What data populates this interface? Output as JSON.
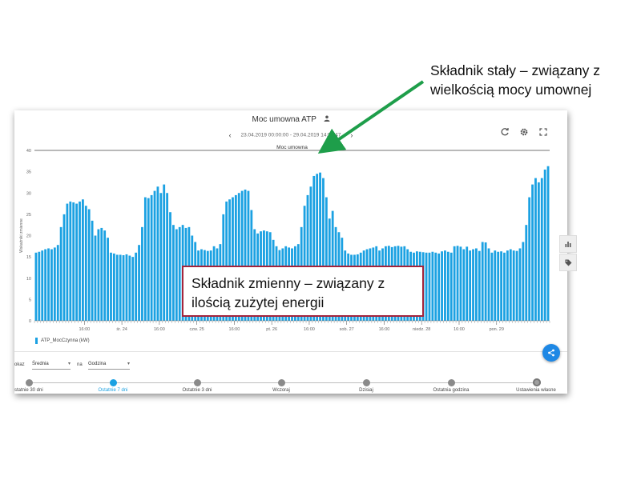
{
  "panel": {
    "title": "Moc umowna ATP",
    "date_range": "23.04.2019 00:00:00 - 29.04.2019 14:56:47",
    "icons": [
      "user-icon",
      "chevron-left-icon",
      "chevron-right-icon",
      "refresh-icon",
      "gear-icon",
      "fullscreen-icon",
      "bar-chart-icon",
      "tag-icon",
      "share-icon"
    ]
  },
  "chart_data": {
    "type": "bar",
    "title": "Moc umowna",
    "ylabel": "Wskaźniki zmienne",
    "ylim": [
      0,
      40
    ],
    "yticks": [
      0,
      5,
      10,
      15,
      20,
      25,
      30,
      35,
      40
    ],
    "xticks": [
      "16:00",
      "śr. 24",
      "16:00",
      "czw. 25",
      "16:00",
      "pt. 26",
      "16:00",
      "sob. 27",
      "16:00",
      "niedz. 28",
      "16:00",
      "pon. 29"
    ],
    "threshold": {
      "label": "Moc umowna",
      "value": 40
    },
    "color": "#1ba1e2",
    "series": [
      {
        "name": "ATP_MocCzynna (kW)",
        "values": [
          16,
          16.2,
          16.5,
          16.8,
          17,
          16.8,
          17.2,
          17.8,
          22,
          25,
          27.5,
          28,
          27.8,
          27.5,
          28,
          28.5,
          27,
          26.2,
          23.5,
          20,
          21.5,
          21.8,
          21.2,
          19.5,
          16,
          15.8,
          15.5,
          15.5,
          15.4,
          15.6,
          15.3,
          15,
          16,
          17.8,
          22,
          29,
          28.8,
          29.5,
          30.5,
          31.5,
          30,
          32,
          30,
          25.5,
          22.5,
          21.5,
          22,
          22.5,
          21.8,
          22,
          20,
          18.5,
          16.5,
          16.8,
          16.6,
          16.4,
          16.5,
          17.5,
          17,
          18,
          25,
          28,
          28.5,
          29,
          29.5,
          30,
          30.5,
          30.8,
          30.5,
          26,
          21.5,
          20.5,
          21,
          21.2,
          21,
          20.8,
          19,
          17.5,
          16.6,
          17,
          17.5,
          17.2,
          17,
          17.5,
          18,
          22,
          27,
          29.5,
          31.5,
          34,
          34.5,
          34.8,
          33.5,
          29,
          24,
          25.8,
          22,
          20.8,
          19.5,
          16.5,
          15.8,
          15.5,
          15.5,
          15.6,
          16,
          16.5,
          16.8,
          17,
          17.2,
          17.5,
          16.5,
          17,
          17.5,
          17.6,
          17.3,
          17.5,
          17.6,
          17.4,
          17.5,
          16.8,
          16.2,
          16,
          16.3,
          16.2,
          16.1,
          16,
          16,
          16.2,
          16,
          15.8,
          16.3,
          16.5,
          16.2,
          16,
          17.5,
          17.6,
          17.4,
          16.8,
          17.4,
          16.5,
          16.8,
          17,
          16.4,
          18.5,
          18.4,
          17,
          16,
          16.5,
          16.2,
          16.3,
          16,
          16.5,
          16.8,
          16.5,
          16.4,
          17,
          18.5,
          22.5,
          29,
          32,
          33.5,
          32.5,
          33.5,
          35.5,
          36.3
        ]
      }
    ]
  },
  "legend": {
    "label": "ATP_MocCzynna (kW)"
  },
  "controls": {
    "show_label": "okaz",
    "aggregate_value": "Średnia",
    "per_label": "na",
    "period_value": "Godzina"
  },
  "timeline": {
    "items": [
      {
        "label": "statnie 30 dni"
      },
      {
        "label": "Ostatnie 7 dni"
      },
      {
        "label": "Ostatnie 3 dni"
      },
      {
        "label": "Wczoraj"
      },
      {
        "label": "Dzisiaj"
      },
      {
        "label": "Ostatnia godzina"
      },
      {
        "label": "Ustawienia własne"
      }
    ],
    "active_index": 1
  },
  "annotations": {
    "top_line1": "Składnik stały – związany z",
    "top_line2": "wielkością mocy umownej",
    "box_line1": "Składnik zmienny – związany z",
    "box_line2": "ilością zużytej energii",
    "arrow_color": "#1e9e4a",
    "box_border": "#a4243b"
  }
}
